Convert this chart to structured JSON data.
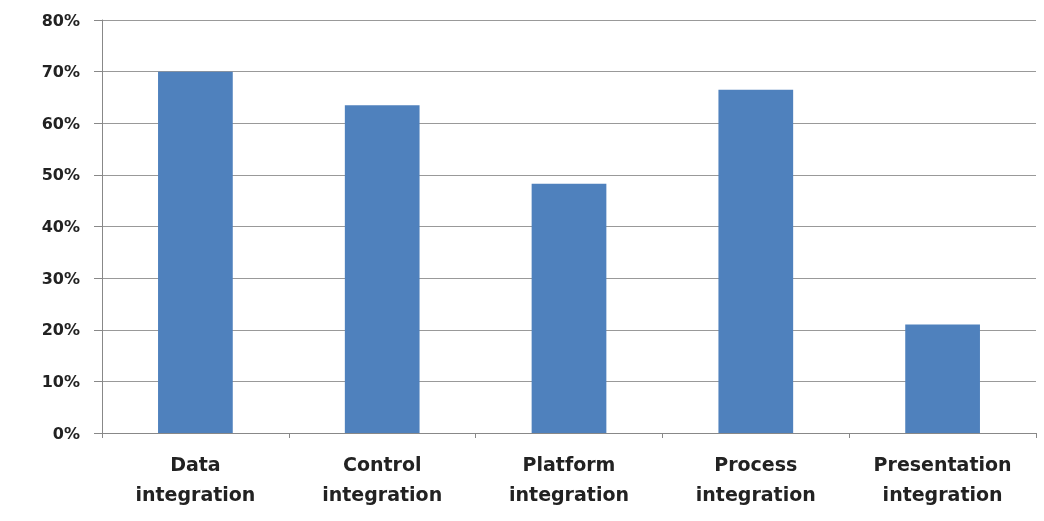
{
  "chart_data": {
    "type": "bar",
    "categories": [
      "Data\nintegration",
      "Control\nintegration",
      "Platform\nintegration",
      "Process\nintegration",
      "Presentation\nintegration"
    ],
    "series": [
      {
        "color": "#4f81bd",
        "values": [
          70,
          63.5,
          48.3,
          66.5,
          21
        ]
      }
    ],
    "ylim": [
      0,
      80
    ],
    "yticks": [
      {
        "value": 0,
        "label": "0%"
      },
      {
        "value": 10,
        "label": "10%"
      },
      {
        "value": 20,
        "label": "20%"
      },
      {
        "value": 30,
        "label": "30%"
      },
      {
        "value": 40,
        "label": "40%"
      },
      {
        "value": 50,
        "label": "50%"
      },
      {
        "value": 60,
        "label": "60%"
      },
      {
        "value": 70,
        "label": "70%"
      },
      {
        "value": 80,
        "label": "80%"
      }
    ],
    "grid": "y"
  }
}
